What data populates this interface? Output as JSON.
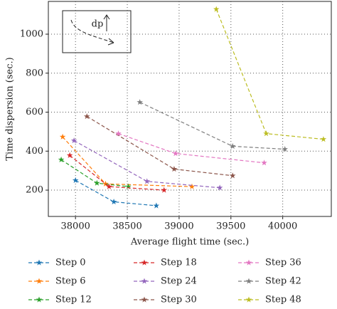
{
  "chart_data": {
    "type": "line",
    "x_label": "Average flight time (sec.)",
    "y_label": "Time dispersion (sec.)",
    "inset_label": "dp",
    "xlim": [
      37738,
      40469
    ],
    "ylim": [
      65,
      1168
    ],
    "xticks": [
      38000,
      38500,
      39000,
      39500,
      40000
    ],
    "yticks": [
      200,
      400,
      600,
      800,
      1000
    ],
    "grid": true,
    "series": [
      {
        "name": "Step 0",
        "color": "#1f77b4",
        "x": [
          38000,
          38370,
          38780
        ],
        "values": [
          250,
          140,
          120
        ]
      },
      {
        "name": "Step 6",
        "color": "#ff7f0e",
        "x": [
          37876,
          38290,
          39124
        ],
        "values": [
          473,
          232,
          218
        ]
      },
      {
        "name": "Step 12",
        "color": "#2ca02c",
        "x": [
          37862,
          38207,
          38510
        ],
        "values": [
          356,
          236,
          218
        ]
      },
      {
        "name": "Step 18",
        "color": "#d62728",
        "x": [
          37945,
          38324,
          38855
        ],
        "values": [
          378,
          218,
          200
        ]
      },
      {
        "name": "Step 24",
        "color": "#9467bd",
        "x": [
          37986,
          38690,
          39393
        ],
        "values": [
          454,
          245,
          212
        ]
      },
      {
        "name": "Step 30",
        "color": "#8c564b",
        "x": [
          38110,
          38952,
          39517
        ],
        "values": [
          578,
          308,
          274
        ]
      },
      {
        "name": "Step 36",
        "color": "#e377c2",
        "x": [
          38414,
          38966,
          39821
        ],
        "values": [
          490,
          388,
          340
        ]
      },
      {
        "name": "Step 42",
        "color": "#7f7f7f",
        "x": [
          38621,
          39517,
          40021
        ],
        "values": [
          651,
          425,
          410
        ]
      },
      {
        "name": "Step 48",
        "color": "#bcbd22",
        "x": [
          39359,
          39841,
          40393
        ],
        "values": [
          1128,
          490,
          461
        ]
      }
    ]
  }
}
